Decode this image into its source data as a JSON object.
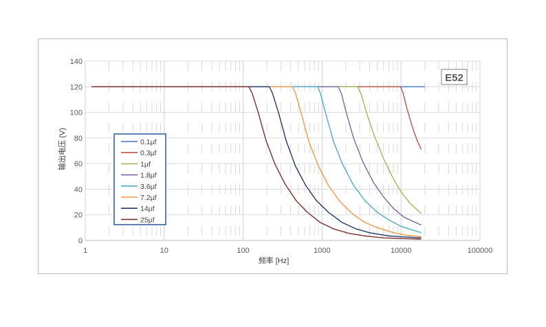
{
  "chart_data": {
    "type": "line",
    "title": "",
    "xlabel": "频率 [Hz]",
    "ylabel": "输出电压 (V)",
    "x_scale": "log",
    "xlim": [
      1,
      100000
    ],
    "ylim": [
      0,
      140
    ],
    "x_ticks": [
      1,
      10,
      100,
      1000,
      10000,
      100000
    ],
    "y_ticks": [
      0,
      20,
      40,
      60,
      80,
      100,
      120,
      140
    ],
    "grid": true,
    "legend_position": "left",
    "badge": "E52",
    "series": [
      {
        "name": "0.1µf",
        "color": "#4472c4",
        "x": [
          1.2,
          20000
        ],
        "y": [
          120,
          120
        ]
      },
      {
        "name": "0.3µf",
        "color": "#c0504d",
        "x": [
          1.2,
          9800,
          10500,
          12000,
          14000,
          16000,
          18000
        ],
        "y": [
          120,
          120,
          116,
          102,
          88,
          78,
          71
        ]
      },
      {
        "name": "1µf",
        "color": "#9bbb59",
        "x": [
          1.2,
          2800,
          3100,
          3600,
          4500,
          6000,
          8000,
          10000,
          13000,
          18000
        ],
        "y": [
          120,
          120,
          115,
          101,
          83,
          64,
          48,
          38,
          29,
          21
        ]
      },
      {
        "name": "1.8µf",
        "color": "#8064a2",
        "x": [
          1.2,
          1600,
          1750,
          2000,
          2500,
          3300,
          4500,
          6000,
          8000,
          11000,
          18000
        ],
        "y": [
          120,
          120,
          115,
          101,
          80,
          61,
          45,
          34,
          25,
          18,
          12
        ]
      },
      {
        "name": "3.6µf",
        "color": "#4bacc6",
        "x": [
          1.2,
          880,
          950,
          1100,
          1400,
          1800,
          2500,
          3500,
          5000,
          7000,
          10000,
          18000
        ],
        "y": [
          120,
          120,
          115,
          100,
          77,
          60,
          43,
          31,
          22,
          16,
          11,
          6
        ]
      },
      {
        "name": "7.2µf",
        "color": "#f79646",
        "x": [
          1.2,
          420,
          460,
          540,
          680,
          900,
          1200,
          1700,
          2500,
          3500,
          5000,
          8000,
          12000,
          18000
        ],
        "y": [
          120,
          120,
          115,
          100,
          77,
          58,
          43,
          30,
          20,
          14,
          10,
          6,
          4,
          3
        ]
      },
      {
        "name": "14µf",
        "color": "#1f3864",
        "x": [
          1.2,
          215,
          235,
          280,
          350,
          460,
          620,
          850,
          1200,
          1800,
          2700,
          4000,
          7000,
          18000
        ],
        "y": [
          120,
          120,
          115,
          100,
          78,
          58,
          43,
          31,
          22,
          14,
          9,
          6,
          3.5,
          2
        ]
      },
      {
        "name": "25µf",
        "color": "#7b2c2c",
        "x": [
          1.2,
          118,
          130,
          155,
          195,
          255,
          340,
          470,
          650,
          950,
          1400,
          2200,
          3500,
          6000,
          18000
        ],
        "y": [
          120,
          120,
          115,
          100,
          78,
          59,
          44,
          31,
          22,
          14,
          9,
          5.5,
          3.5,
          2,
          1
        ]
      }
    ]
  }
}
